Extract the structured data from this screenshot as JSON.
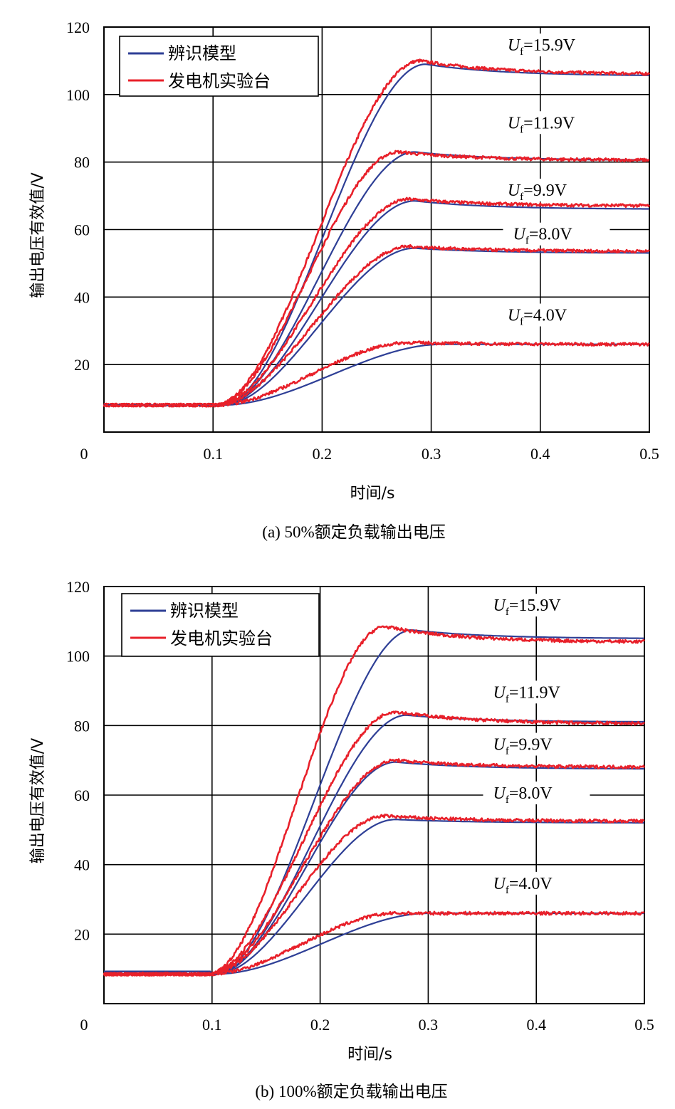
{
  "colors": {
    "model": "#2e3f96",
    "experiment": "#e8202a",
    "grid": "#000000"
  },
  "chart_data": [
    {
      "type": "line",
      "caption": "(a) 50%额定负载输出电压",
      "xlabel": "时间/s",
      "ylabel": "输出电压有效值/V",
      "xlim": [
        0,
        0.5
      ],
      "ylim": [
        0,
        120
      ],
      "xticks": [
        "0",
        "0.1",
        "0.2",
        "0.3",
        "0.4",
        "0.5"
      ],
      "yticks": [
        "20",
        "40",
        "60",
        "80",
        "100",
        "120"
      ],
      "grid": true,
      "legend": {
        "placement": "top-left",
        "entries": [
          "辨识模型",
          "发电机实验台"
        ]
      },
      "baseline": 8,
      "t_start": 0.105,
      "annotations": [
        {
          "U": "U",
          "sub": "f",
          "value": "=15.9V",
          "at": [
            0.37,
            113
          ]
        },
        {
          "U": "U",
          "sub": "f",
          "value": "=11.9V",
          "at": [
            0.37,
            90
          ]
        },
        {
          "U": "U",
          "sub": "f",
          "value": "=9.9V",
          "at": [
            0.37,
            70
          ]
        },
        {
          "U": "U",
          "sub": "f",
          "value": "=8.0V",
          "at": [
            0.375,
            57
          ]
        },
        {
          "U": "U",
          "sub": "f",
          "value": "=4.0V",
          "at": [
            0.37,
            33
          ]
        }
      ],
      "series": [
        {
          "name": "辨识模型",
          "uf": "15.9V",
          "peak": 109,
          "tpeak": 0.295,
          "final": 105.5,
          "kind": "model"
        },
        {
          "name": "发电机实验台",
          "uf": "15.9V",
          "peak": 110,
          "tpeak": 0.29,
          "final": 106,
          "kind": "exp"
        },
        {
          "name": "辨识模型",
          "uf": "11.9V",
          "peak": 83,
          "tpeak": 0.285,
          "final": 80.5,
          "kind": "model"
        },
        {
          "name": "发电机实验台",
          "uf": "11.9V",
          "peak": 83,
          "tpeak": 0.27,
          "final": 80.5,
          "kind": "exp"
        },
        {
          "name": "辨识模型",
          "uf": "9.9V",
          "peak": 68.5,
          "tpeak": 0.285,
          "final": 66,
          "kind": "model"
        },
        {
          "name": "发电机实验台",
          "uf": "9.9V",
          "peak": 69,
          "tpeak": 0.28,
          "final": 67,
          "kind": "exp"
        },
        {
          "name": "辨识模型",
          "uf": "8.0V",
          "peak": 54.5,
          "tpeak": 0.285,
          "final": 53,
          "kind": "model"
        },
        {
          "name": "发电机实验台",
          "uf": "8.0V",
          "peak": 55,
          "tpeak": 0.28,
          "final": 53.5,
          "kind": "exp"
        },
        {
          "name": "辨识模型",
          "uf": "4.0V",
          "peak": 26,
          "tpeak": 0.31,
          "final": 26,
          "kind": "model"
        },
        {
          "name": "发电机实验台",
          "uf": "4.0V",
          "peak": 26.5,
          "tpeak": 0.28,
          "final": 26,
          "kind": "exp"
        }
      ]
    },
    {
      "type": "line",
      "caption": "(b) 100%额定负载输出电压",
      "xlabel": "时间/s",
      "ylabel": "输出电压有效值/V",
      "xlim": [
        0,
        0.5
      ],
      "ylim": [
        0,
        120
      ],
      "xticks": [
        "0",
        "0.1",
        "0.2",
        "0.3",
        "0.4",
        "0.5"
      ],
      "yticks": [
        "20",
        "40",
        "60",
        "80",
        "100",
        "120"
      ],
      "grid": true,
      "legend": {
        "placement": "top-left",
        "entries": [
          "辨识模型",
          "发电机实验台"
        ]
      },
      "baseline": 8.5,
      "t_start": 0.1,
      "annotations": [
        {
          "U": "U",
          "sub": "f",
          "value": "=15.9V",
          "at": [
            0.36,
            113
          ]
        },
        {
          "U": "U",
          "sub": "f",
          "value": "=11.9V",
          "at": [
            0.36,
            88
          ]
        },
        {
          "U": "U",
          "sub": "f",
          "value": "=9.9V",
          "at": [
            0.36,
            73
          ]
        },
        {
          "U": "U",
          "sub": "f",
          "value": "=8.0V",
          "at": [
            0.36,
            59
          ]
        },
        {
          "U": "U",
          "sub": "f",
          "value": "=4.0V",
          "at": [
            0.36,
            33
          ]
        }
      ],
      "series": [
        {
          "name": "辨识模型",
          "uf": "15.9V",
          "peak": 107.5,
          "tpeak": 0.285,
          "final": 105,
          "kind": "model"
        },
        {
          "name": "发电机实验台",
          "uf": "15.9V",
          "peak": 108.5,
          "tpeak": 0.26,
          "final": 104,
          "kind": "exp"
        },
        {
          "name": "辨识模型",
          "uf": "11.9V",
          "peak": 83,
          "tpeak": 0.28,
          "final": 81,
          "kind": "model"
        },
        {
          "name": "发电机实验台",
          "uf": "11.9V",
          "peak": 84,
          "tpeak": 0.27,
          "final": 80.5,
          "kind": "exp"
        },
        {
          "name": "辨识模型",
          "uf": "9.9V",
          "peak": 69.5,
          "tpeak": 0.27,
          "final": 67.5,
          "kind": "model"
        },
        {
          "name": "发电机实验台",
          "uf": "9.9V",
          "peak": 70,
          "tpeak": 0.27,
          "final": 68,
          "kind": "exp"
        },
        {
          "name": "辨识模型",
          "uf": "8.0V",
          "peak": 53,
          "tpeak": 0.27,
          "final": 52,
          "kind": "model"
        },
        {
          "name": "发电机实验台",
          "uf": "8.0V",
          "peak": 54,
          "tpeak": 0.26,
          "final": 52.5,
          "kind": "exp"
        },
        {
          "name": "辨识模型",
          "uf": "4.0V",
          "peak": 26,
          "tpeak": 0.3,
          "final": 26,
          "kind": "model"
        },
        {
          "name": "发电机实验台",
          "uf": "4.0V",
          "peak": 26,
          "tpeak": 0.27,
          "final": 26,
          "kind": "exp"
        }
      ]
    }
  ]
}
